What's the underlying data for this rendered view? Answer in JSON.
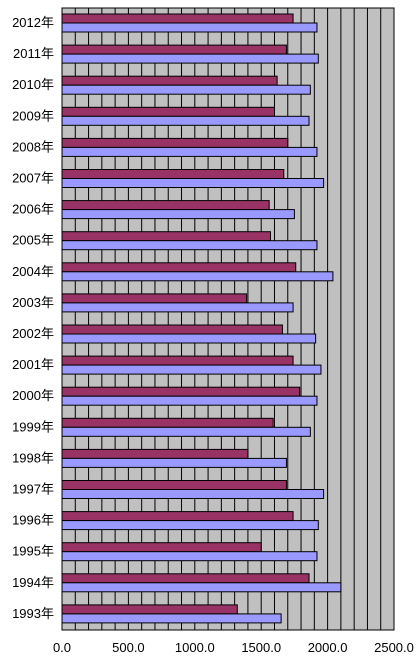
{
  "chart_data": {
    "type": "bar",
    "orientation": "horizontal",
    "categories": [
      "2012年",
      "2011年",
      "2010年",
      "2009年",
      "2008年",
      "2007年",
      "2006年",
      "2005年",
      "2004年",
      "2003年",
      "2002年",
      "2001年",
      "2000年",
      "1999年",
      "1998年",
      "1997年",
      "1996年",
      "1995年",
      "1994年",
      "1993年"
    ],
    "series": [
      {
        "color": "#993366",
        "values": [
          1740,
          1690,
          1620,
          1600,
          1700,
          1670,
          1560,
          1570,
          1760,
          1390,
          1660,
          1740,
          1790,
          1590,
          1400,
          1690,
          1740,
          1500,
          1860,
          1320
        ]
      },
      {
        "color": "#9999ff",
        "values": [
          1920,
          1930,
          1870,
          1860,
          1920,
          1970,
          1750,
          1920,
          2040,
          1740,
          1910,
          1950,
          1920,
          1870,
          1690,
          1970,
          1930,
          1920,
          2100,
          1650
        ]
      }
    ],
    "xlim": [
      0,
      2500
    ],
    "x_ticks": [
      "0.0",
      "500.0",
      "1000.0",
      "1500.0",
      "2000.0",
      "2500.0"
    ],
    "gridlines": "vertical, every 100",
    "plot_background": "#c0c0c0",
    "legend": "none"
  }
}
